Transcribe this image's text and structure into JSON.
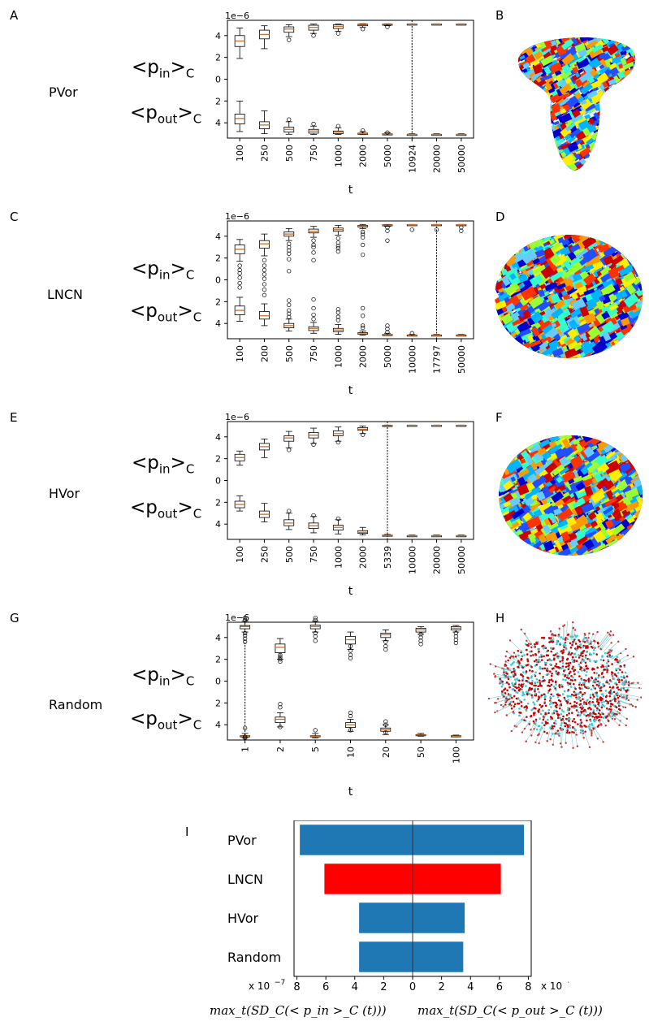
{
  "panel_letters": [
    "A",
    "B",
    "C",
    "D",
    "E",
    "F",
    "G",
    "H",
    "I"
  ],
  "row_names": [
    "PVor",
    "LNCN",
    "HVor",
    "Random"
  ],
  "p_in_label": "<p",
  "p_in_sub": "in",
  "p_out_label": "<p",
  "p_out_sub": "out",
  "p_suffix": ">",
  "p_sub_c": "C",
  "bottom_formula_left": "max_t(SD_C(< p_in >_C (t)))",
  "bottom_formula_right": "max_t(SD_C(< p_out >_C (t)))",
  "colors": {
    "box": "#c8702a",
    "blue_bar": "#1f77b4",
    "red_bar": "#ff0000",
    "axis": "#000000"
  },
  "chart_data": [
    {
      "type": "box",
      "panel": "A",
      "row": "PVor",
      "title": "",
      "xlabel": "t",
      "ylabel": "",
      "offset_text": "1e−6",
      "categories": [
        "100",
        "250",
        "500",
        "750",
        "1000",
        "2000",
        "5000",
        "10924",
        "20000",
        "50000"
      ],
      "x": [
        100,
        250,
        500,
        750,
        1000,
        2000,
        5000,
        10924,
        20000,
        50000
      ],
      "y_tick_labels": [
        "4",
        "2",
        "0",
        "2",
        "4"
      ],
      "y_tick_values": [
        4,
        2,
        0,
        -2,
        -4
      ],
      "ylim": [
        -5.4,
        5.4
      ],
      "vline_at": "10924",
      "p_in": {
        "q1": [
          3.0,
          3.7,
          4.3,
          4.5,
          4.65,
          4.9,
          5.0,
          5.05,
          5.05,
          5.05
        ],
        "median": [
          3.5,
          4.1,
          4.6,
          4.75,
          4.85,
          5.0,
          5.03,
          5.06,
          5.06,
          5.06
        ],
        "q3": [
          4.0,
          4.5,
          4.8,
          4.95,
          5.0,
          5.05,
          5.06,
          5.07,
          5.07,
          5.07
        ],
        "low": [
          1.9,
          2.8,
          3.9,
          4.2,
          4.4,
          4.75,
          4.9,
          5.0,
          5.0,
          5.0
        ],
        "high": [
          4.7,
          4.9,
          5.0,
          5.05,
          5.05,
          5.08,
          5.08,
          5.08,
          5.08,
          5.08
        ],
        "outliers": [
          [],
          [],
          [
            3.6
          ],
          [
            4.0
          ],
          [
            4.2
          ],
          [
            4.6
          ],
          [
            4.8
          ],
          [],
          [],
          []
        ]
      },
      "p_out": {
        "q1": [
          -3.2,
          -3.9,
          -4.4,
          -4.6,
          -4.75,
          -4.95,
          -5.0,
          -5.05,
          -5.05,
          -5.05
        ],
        "median": [
          -3.6,
          -4.2,
          -4.6,
          -4.75,
          -4.85,
          -5.0,
          -5.03,
          -5.06,
          -5.06,
          -5.06
        ],
        "q3": [
          -4.1,
          -4.55,
          -4.85,
          -4.95,
          -5.0,
          -5.05,
          -5.06,
          -5.07,
          -5.07,
          -5.07
        ],
        "low": [
          -4.8,
          -5.0,
          -5.05,
          -5.06,
          -5.06,
          -5.08,
          -5.08,
          -5.08,
          -5.08,
          -5.08
        ],
        "high": [
          -2.0,
          -2.9,
          -3.9,
          -4.3,
          -4.45,
          -4.8,
          -4.9,
          -5.0,
          -5.0,
          -5.0
        ],
        "outliers": [
          [],
          [],
          [
            -3.7
          ],
          [
            -4.1
          ],
          [
            -4.3
          ],
          [
            -4.7
          ],
          [
            -4.9
          ],
          [],
          [],
          []
        ]
      }
    },
    {
      "type": "box",
      "panel": "C",
      "row": "LNCN",
      "title": "",
      "xlabel": "t",
      "ylabel": "",
      "offset_text": "1e−6",
      "categories": [
        "100",
        "200",
        "500",
        "750",
        "1000",
        "2000",
        "5000",
        "10000",
        "17797",
        "50000"
      ],
      "x": [
        100,
        200,
        500,
        750,
        1000,
        2000,
        5000,
        10000,
        17797,
        50000
      ],
      "y_tick_labels": [
        "4",
        "2",
        "0",
        "2",
        "4"
      ],
      "y_tick_values": [
        4,
        2,
        0,
        -2,
        -4
      ],
      "ylim": [
        -5.4,
        5.4
      ],
      "vline_at": "17797",
      "p_in": {
        "q1": [
          2.4,
          2.9,
          4.0,
          4.3,
          4.45,
          4.85,
          5.0,
          5.05,
          5.05,
          5.05
        ],
        "median": [
          2.8,
          3.3,
          4.2,
          4.45,
          4.6,
          4.95,
          5.03,
          5.06,
          5.06,
          5.06
        ],
        "q3": [
          3.2,
          3.6,
          4.4,
          4.65,
          4.75,
          5.0,
          5.06,
          5.07,
          5.07,
          5.07
        ],
        "low": [
          1.7,
          2.2,
          3.6,
          3.9,
          4.1,
          4.7,
          4.9,
          5.0,
          5.0,
          5.0
        ],
        "high": [
          3.7,
          4.2,
          4.7,
          4.9,
          5.0,
          5.08,
          5.08,
          5.08,
          5.08,
          5.08
        ],
        "outliers": [
          [
            1.3,
            0.9,
            0.6,
            0.2,
            -0.3,
            -0.7
          ],
          [
            1.8,
            1.3,
            0.9,
            0.5,
            0.1,
            -0.4,
            -0.9,
            -1.4
          ],
          [
            3.3,
            3.0,
            2.7,
            2.4,
            1.9,
            0.8
          ],
          [
            3.6,
            3.2,
            3.0,
            2.5,
            1.8
          ],
          [
            3.8,
            3.4,
            3.1,
            2.9,
            2.6
          ],
          [
            4.4,
            4.2,
            3.9,
            3.2,
            2.3
          ],
          [
            4.8,
            4.5,
            3.6
          ],
          [
            4.6
          ],
          [
            4.6
          ],
          [
            4.8,
            4.5
          ]
        ]
      },
      "p_out": {
        "q1": [
          -2.4,
          -2.9,
          -4.0,
          -4.3,
          -4.45,
          -4.85,
          -5.0,
          -5.05,
          -5.05,
          -5.05
        ],
        "median": [
          -2.8,
          -3.3,
          -4.2,
          -4.45,
          -4.6,
          -4.95,
          -5.03,
          -5.06,
          -5.06,
          -5.06
        ],
        "q3": [
          -3.2,
          -3.6,
          -4.4,
          -4.65,
          -4.75,
          -5.0,
          -5.06,
          -5.07,
          -5.07,
          -5.07
        ],
        "low": [
          -3.8,
          -4.2,
          -4.7,
          -4.9,
          -5.0,
          -5.08,
          -5.08,
          -5.08,
          -5.08,
          -5.08
        ],
        "high": [
          -1.6,
          -2.2,
          -3.6,
          -3.9,
          -4.1,
          -4.7,
          -4.9,
          -5.0,
          -5.0,
          -5.0
        ],
        "outliers": [
          [],
          [],
          [
            -3.4,
            -3.1,
            -2.8,
            -2.3,
            -1.9
          ],
          [
            -3.6,
            -3.2,
            -2.6,
            -1.8
          ],
          [
            -3.7,
            -3.4,
            -3.0,
            -2.7
          ],
          [
            -4.4,
            -4.2,
            -3.3,
            -2.6
          ],
          [
            -4.8,
            -4.5,
            -4.2
          ],
          [
            -4.9
          ],
          [],
          []
        ]
      }
    },
    {
      "type": "box",
      "panel": "E",
      "row": "HVor",
      "title": "",
      "xlabel": "t",
      "ylabel": "",
      "offset_text": "1e−6",
      "categories": [
        "100",
        "250",
        "500",
        "750",
        "1000",
        "2000",
        "5339",
        "10000",
        "20000",
        "50000"
      ],
      "x": [
        100,
        250,
        500,
        750,
        1000,
        2000,
        5339,
        10000,
        20000,
        50000
      ],
      "y_tick_labels": [
        "4",
        "2",
        "0",
        "2",
        "4"
      ],
      "y_tick_values": [
        4,
        2,
        0,
        -2,
        -4
      ],
      "ylim": [
        -5.4,
        5.4
      ],
      "vline_at": "5339",
      "p_in": {
        "q1": [
          1.8,
          2.8,
          3.6,
          3.9,
          4.1,
          4.6,
          5.0,
          5.05,
          5.05,
          5.05
        ],
        "median": [
          2.1,
          3.1,
          3.9,
          4.15,
          4.3,
          4.7,
          5.03,
          5.06,
          5.06,
          5.06
        ],
        "q3": [
          2.4,
          3.4,
          4.1,
          4.4,
          4.55,
          4.85,
          5.06,
          5.07,
          5.07,
          5.07
        ],
        "low": [
          1.4,
          2.1,
          3.0,
          3.4,
          3.6,
          4.3,
          4.95,
          5.0,
          5.0,
          5.0
        ],
        "high": [
          2.7,
          3.8,
          4.5,
          4.8,
          4.9,
          5.0,
          5.08,
          5.08,
          5.08,
          5.08
        ],
        "outliers": [
          [],
          [],
          [
            2.8
          ],
          [
            3.3
          ],
          [
            3.5
          ],
          [
            4.2
          ],
          [],
          [],
          [],
          []
        ]
      },
      "p_out": {
        "q1": [
          -1.9,
          -2.8,
          -3.6,
          -3.9,
          -4.1,
          -4.6,
          -5.0,
          -5.05,
          -5.05,
          -5.05
        ],
        "median": [
          -2.2,
          -3.1,
          -3.9,
          -4.15,
          -4.3,
          -4.75,
          -5.03,
          -5.06,
          -5.06,
          -5.06
        ],
        "q3": [
          -2.5,
          -3.4,
          -4.15,
          -4.4,
          -4.55,
          -4.85,
          -5.06,
          -5.07,
          -5.07,
          -5.07
        ],
        "low": [
          -2.8,
          -3.8,
          -4.5,
          -4.8,
          -4.9,
          -5.0,
          -5.08,
          -5.08,
          -5.08,
          -5.08
        ],
        "high": [
          -1.4,
          -2.1,
          -3.0,
          -3.3,
          -3.6,
          -4.3,
          -4.95,
          -5.0,
          -5.0,
          -5.0
        ],
        "outliers": [
          [],
          [],
          [
            -2.8
          ],
          [
            -3.2
          ],
          [
            -3.5
          ],
          [],
          [],
          [],
          [],
          []
        ]
      }
    },
    {
      "type": "box",
      "panel": "G",
      "row": "Random",
      "title": "",
      "xlabel": "t",
      "ylabel": "",
      "offset_text": "1e−6",
      "categories": [
        "1",
        "2",
        "5",
        "10",
        "20",
        "50",
        "100"
      ],
      "x": [
        1,
        2,
        5,
        10,
        20,
        50,
        100
      ],
      "y_tick_labels": [
        "4",
        "2",
        "0",
        "2",
        "4"
      ],
      "y_tick_values": [
        4,
        2,
        0,
        -2,
        -4
      ],
      "ylim": [
        -5.4,
        5.4
      ],
      "vline_at": "1",
      "p_in": {
        "q1": [
          4.8,
          2.6,
          4.8,
          3.4,
          4.0,
          4.5,
          4.7
        ],
        "median": [
          5.0,
          3.1,
          5.0,
          3.8,
          4.25,
          4.7,
          4.85
        ],
        "q3": [
          5.1,
          3.4,
          5.15,
          4.1,
          4.4,
          4.85,
          5.0
        ],
        "low": [
          4.5,
          2.0,
          4.5,
          2.9,
          3.7,
          4.3,
          4.5
        ],
        "high": [
          5.5,
          3.9,
          5.5,
          4.5,
          4.7,
          5.0,
          5.1
        ],
        "outliers": [
          [
            5.8,
            5.6,
            4.4,
            4.2,
            3.9,
            3.6
          ],
          [
            2.4,
            2.2,
            2.0,
            1.8
          ],
          [
            5.8,
            5.6,
            4.4,
            4.1,
            3.7
          ],
          [
            3.2,
            2.8,
            2.4,
            2.1
          ],
          [
            3.6,
            3.2,
            2.9
          ],
          [
            4.3,
            4.0,
            3.7,
            3.4
          ],
          [
            4.4,
            4.1,
            3.8,
            3.5
          ]
        ]
      },
      "p_out": {
        "q1": [
          -5.0,
          -3.3,
          -5.0,
          -3.8,
          -4.3,
          -4.9,
          -5.0
        ],
        "median": [
          -5.05,
          -3.5,
          -5.05,
          -4.0,
          -4.45,
          -4.95,
          -5.05
        ],
        "q3": [
          -5.1,
          -3.8,
          -5.1,
          -4.25,
          -4.6,
          -5.0,
          -5.08
        ],
        "low": [
          -5.2,
          -4.2,
          -5.2,
          -4.6,
          -4.9,
          -5.05,
          -5.1
        ],
        "high": [
          -4.8,
          -2.9,
          -4.8,
          -3.5,
          -4.0,
          -4.8,
          -4.95
        ],
        "outliers": [
          [
            -5.2,
            -5.1,
            -4.3
          ],
          [
            -4.2,
            -2.4,
            -2.1
          ],
          [
            -4.5
          ],
          [
            -3.2,
            -2.9,
            -4.5
          ],
          [
            -3.7,
            -4.0,
            -4.7
          ],
          [],
          []
        ]
      }
    },
    {
      "type": "bar",
      "panel": "I",
      "orientation": "horizontal",
      "title": "",
      "categories": [
        "PVor",
        "LNCN",
        "HVor",
        "Random"
      ],
      "series": [
        {
          "values": [
            7.8,
            6.1,
            3.7,
            3.7
          ]
        },
        {
          "values": [
            7.7,
            6.1,
            3.6,
            3.5
          ]
        }
      ],
      "bar_colors": [
        "#1f77b4",
        "#ff0000",
        "#1f77b4",
        "#1f77b4"
      ],
      "x_tick_labels": [
        "8",
        "6",
        "4",
        "2",
        "0",
        "2",
        "4",
        "6",
        "8"
      ],
      "x_tick_values": [
        -8,
        -6,
        -4,
        -2,
        0,
        2,
        4,
        6,
        8
      ],
      "xlim": [
        -8.2,
        8.2
      ],
      "offset_text_left": "x 10",
      "offset_text_right": "x 10",
      "offset_exponent": "−7"
    }
  ]
}
